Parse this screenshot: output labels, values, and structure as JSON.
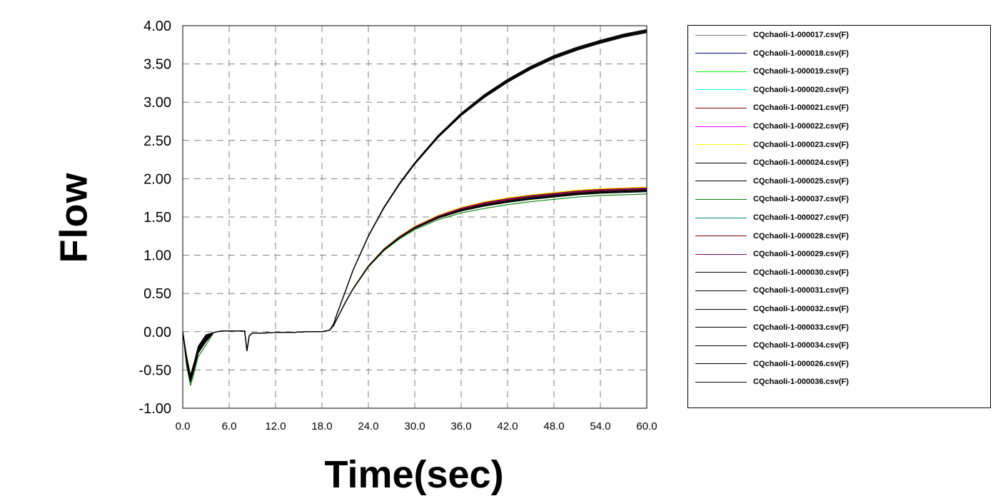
{
  "chart_data": {
    "type": "line",
    "title": "",
    "xlabel": "Time(sec)",
    "ylabel": "Flow",
    "xlim": [
      0,
      60
    ],
    "ylim": [
      -1.0,
      4.0
    ],
    "grid": true,
    "grid_style": "dashed",
    "legend_placement": "right",
    "x_ticks": [
      "0.0",
      "6.0",
      "12.0",
      "18.0",
      "24.0",
      "30.0",
      "36.0",
      "42.0",
      "48.0",
      "54.0",
      "60.0"
    ],
    "y_ticks": [
      "4.00",
      "3.50",
      "3.00",
      "2.50",
      "2.00",
      "1.50",
      "1.00",
      "0.50",
      "0.00",
      "-0.50",
      "-1.00"
    ],
    "series_profiles": {
      "common_x": [
        0,
        0.5,
        1.0,
        1.5,
        2,
        3,
        4,
        5,
        6,
        8,
        8.3,
        8.6,
        9,
        10,
        12,
        14,
        16,
        18,
        19,
        19.5,
        20,
        21,
        22,
        24,
        26,
        28,
        30,
        33,
        36,
        39,
        42,
        45,
        48,
        51,
        54,
        57,
        60
      ],
      "high_y": [
        0,
        -0.35,
        -0.6,
        -0.42,
        -0.22,
        -0.07,
        -0.01,
        0.01,
        0.01,
        0.01,
        -0.25,
        -0.05,
        -0.02,
        -0.02,
        -0.01,
        -0.01,
        0,
        0,
        0.02,
        0.1,
        0.25,
        0.52,
        0.8,
        1.25,
        1.62,
        1.93,
        2.2,
        2.55,
        2.84,
        3.08,
        3.28,
        3.45,
        3.59,
        3.7,
        3.79,
        3.87,
        3.93
      ],
      "low_y": [
        0,
        -0.35,
        -0.6,
        -0.42,
        -0.22,
        -0.07,
        -0.01,
        0.01,
        0.01,
        0.01,
        -0.25,
        -0.05,
        -0.02,
        -0.02,
        -0.01,
        -0.01,
        0,
        0,
        0.02,
        0.08,
        0.18,
        0.38,
        0.56,
        0.86,
        1.08,
        1.24,
        1.37,
        1.51,
        1.61,
        1.68,
        1.73,
        1.77,
        1.8,
        1.83,
        1.85,
        1.86,
        1.87
      ]
    },
    "series": [
      {
        "name": "CQchaoli-1-000017.csv(F)",
        "color": "#808080",
        "profile": "low",
        "offset": 0.01
      },
      {
        "name": "CQchaoli-1-000018.csv(F)",
        "color": "#000080",
        "profile": "low",
        "offset": -0.01
      },
      {
        "name": "CQchaoli-1-000019.csv(F)",
        "color": "#00ff00",
        "profile": "low",
        "offset": 0.0
      },
      {
        "name": "CQchaoli-1-000020.csv(F)",
        "color": "#00ffff",
        "profile": "low",
        "offset": -0.02
      },
      {
        "name": "CQchaoli-1-000021.csv(F)",
        "color": "#800000",
        "profile": "low",
        "offset": 0.01
      },
      {
        "name": "CQchaoli-1-000022.csv(F)",
        "color": "#ff00ff",
        "profile": "low",
        "offset": 0.02
      },
      {
        "name": "CQchaoli-1-000023.csv(F)",
        "color": "#ffff00",
        "profile": "low",
        "offset": 0.02
      },
      {
        "name": "CQchaoli-1-000024.csv(F)",
        "color": "#000000",
        "profile": "high",
        "offset": 0.0
      },
      {
        "name": "CQchaoli-1-000025.csv(F)",
        "color": "#000000",
        "profile": "high",
        "offset": 0.01
      },
      {
        "name": "CQchaoli-1-000037.csv(F)",
        "color": "#008000",
        "profile": "low",
        "offset": -0.07
      },
      {
        "name": "CQchaoli-1-000027.csv(F)",
        "color": "#008080",
        "profile": "low",
        "offset": -0.03
      },
      {
        "name": "CQchaoli-1-000028.csv(F)",
        "color": "#800000",
        "profile": "low",
        "offset": -0.01
      },
      {
        "name": "CQchaoli-1-000029.csv(F)",
        "color": "#800080",
        "profile": "low",
        "offset": 0.0
      },
      {
        "name": "CQchaoli-1-000030.csv(F)",
        "color": "#000000",
        "profile": "high",
        "offset": -0.01
      },
      {
        "name": "CQchaoli-1-000031.csv(F)",
        "color": "#000000",
        "profile": "high",
        "offset": 0.02
      },
      {
        "name": "CQchaoli-1-000032.csv(F)",
        "color": "#000000",
        "profile": "high",
        "offset": -0.02
      },
      {
        "name": "CQchaoli-1-000033.csv(F)",
        "color": "#000000",
        "profile": "low",
        "offset": -0.02
      },
      {
        "name": "CQchaoli-1-000034.csv(F)",
        "color": "#000000",
        "profile": "low",
        "offset": -0.03
      },
      {
        "name": "CQchaoli-1-000026.csv(F)",
        "color": "#000000",
        "profile": "high",
        "offset": 0.0
      },
      {
        "name": "CQchaoli-1-000036.csv(F)",
        "color": "#000000",
        "profile": "low",
        "offset": -0.04
      }
    ]
  }
}
